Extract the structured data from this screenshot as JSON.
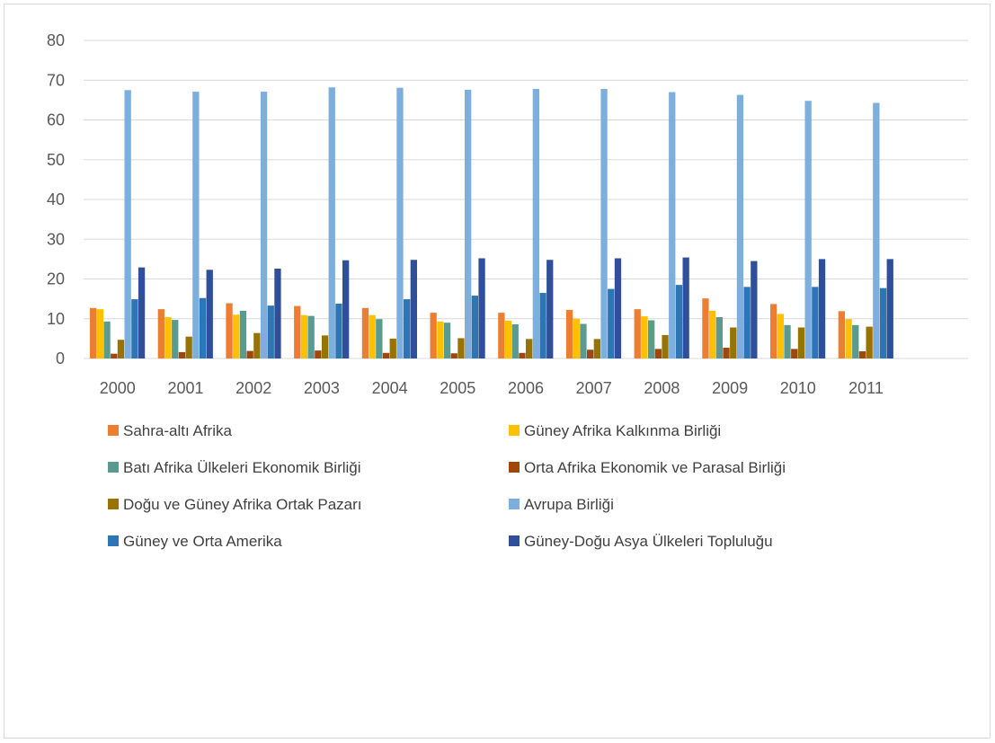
{
  "chart_data": {
    "type": "bar",
    "title": "",
    "xlabel": "",
    "ylabel": "",
    "ylim": [
      0,
      80
    ],
    "yticks": [
      0,
      10,
      20,
      30,
      40,
      50,
      60,
      70,
      80
    ],
    "grid": true,
    "legend_position": "bottom",
    "categories": [
      "2000",
      "2001",
      "2002",
      "2003",
      "2004",
      "2005",
      "2006",
      "2007",
      "2008",
      "2009",
      "2010",
      "2011"
    ],
    "series": [
      {
        "name": "Sahra-altı Afrika",
        "color": "#ED7D31",
        "values": [
          12.7,
          12.4,
          13.9,
          13.2,
          12.7,
          11.5,
          11.5,
          12.2,
          12.4,
          15.1,
          13.7,
          11.9
        ]
      },
      {
        "name": "Güney Afrika Kalkınma Birliği",
        "color": "#FFC000",
        "values": [
          12.4,
          10.4,
          11.0,
          10.9,
          10.9,
          9.3,
          9.5,
          10.0,
          10.6,
          12.0,
          11.2,
          9.9
        ]
      },
      {
        "name": "Batı Afrika Ülkeleri Ekonomik Birliği",
        "color": "#5B9B8F",
        "values": [
          9.3,
          9.7,
          12.0,
          10.7,
          9.9,
          9.0,
          8.6,
          8.7,
          9.6,
          10.4,
          8.4,
          8.4
        ]
      },
      {
        "name": "Orta Afrika Ekonomik ve Parasal Birliği",
        "color": "#9E480E",
        "values": [
          1.2,
          1.6,
          1.9,
          2.0,
          1.4,
          1.3,
          1.4,
          2.2,
          2.4,
          2.7,
          2.4,
          1.8
        ]
      },
      {
        "name": "Doğu ve Güney Afrika Ortak Pazarı",
        "color": "#997300",
        "values": [
          4.7,
          5.5,
          6.4,
          5.8,
          5.0,
          5.1,
          4.9,
          4.9,
          5.9,
          7.8,
          7.8,
          8.0
        ]
      },
      {
        "name": "Avrupa Birliği",
        "color": "#7CAFDD",
        "values": [
          67.5,
          67.1,
          67.1,
          68.2,
          68.1,
          67.6,
          67.8,
          67.8,
          67.0,
          66.3,
          64.8,
          64.3
        ]
      },
      {
        "name": "Güney ve Orta Amerika",
        "color": "#2E75B6",
        "values": [
          14.9,
          15.2,
          13.3,
          13.8,
          14.9,
          15.8,
          16.5,
          17.5,
          18.5,
          18.0,
          18.0,
          17.7
        ]
      },
      {
        "name": "Güney-Doğu Asya Ülkeleri Topluluğu",
        "color": "#2F4F9A",
        "values": [
          22.9,
          22.3,
          22.6,
          24.7,
          24.8,
          25.2,
          24.8,
          25.2,
          25.4,
          24.5,
          25.0,
          25.0
        ]
      }
    ]
  }
}
